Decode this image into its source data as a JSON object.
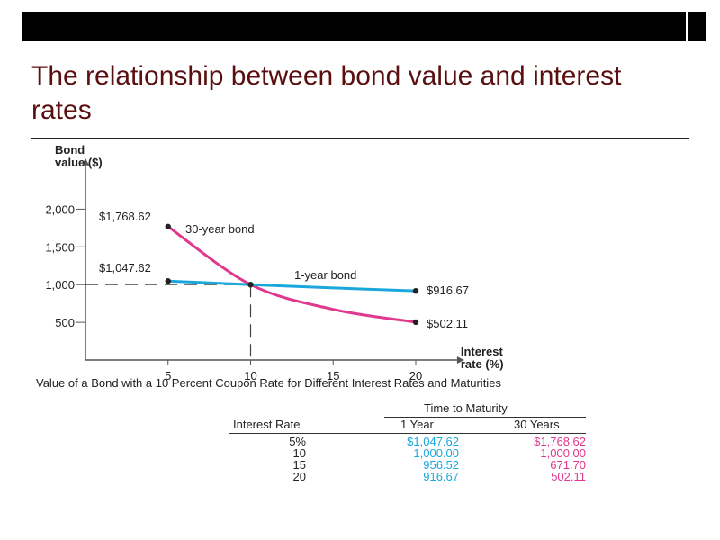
{
  "slide": {
    "title": "The relationship between bond value and interest rates"
  },
  "colors": {
    "title": "#5a1010",
    "thirty_year_bond": "#e0388e",
    "one_year_bond": "#1aa8dc",
    "axis": "#555555"
  },
  "chart_data": {
    "type": "line",
    "caption": "Value of a Bond with a 10 Percent Coupon Rate for Different Interest Rates and Maturities",
    "ylabel": "Bond\nvalue ($)",
    "xlabel": "Interest\nrate (%)",
    "x_ticks": [
      5,
      10,
      15,
      20
    ],
    "x_tick_labels": [
      "5",
      "10",
      "15",
      "20"
    ],
    "y_ticks": [
      500,
      1000,
      1500,
      2000
    ],
    "y_tick_labels": [
      "500",
      "1,000",
      "1,500",
      "2,000"
    ],
    "xlim": [
      0,
      22.5
    ],
    "ylim": [
      0,
      2700
    ],
    "grid": false,
    "series": [
      {
        "name": "30-year bond",
        "color": "#e0388e",
        "x": [
          5,
          10,
          15,
          20
        ],
        "values": [
          1768.62,
          1000.0,
          671.7,
          502.11
        ]
      },
      {
        "name": "1-year bond",
        "color": "#1aa8dc",
        "x": [
          5,
          10,
          15,
          20
        ],
        "values": [
          1047.62,
          1000.0,
          956.52,
          916.67
        ]
      }
    ],
    "annotations": [
      {
        "text": "$1,768.62",
        "x": 5,
        "y": 1768.62
      },
      {
        "text": "$1,047.62",
        "x": 5,
        "y": 1047.62
      },
      {
        "text": "$916.67",
        "x": 20,
        "y": 916.67
      },
      {
        "text": "$502.11",
        "x": 20,
        "y": 502.11
      }
    ],
    "reference_point": {
      "x": 10,
      "y": 1000
    }
  },
  "table": {
    "group_header": "Time to Maturity",
    "headers": [
      "Interest Rate",
      "1 Year",
      "30 Years"
    ],
    "rows": [
      [
        "5%",
        "$1,047.62",
        "$1,768.62"
      ],
      [
        "10",
        "1,000.00",
        "1,000.00"
      ],
      [
        "15",
        "956.52",
        "671.70"
      ],
      [
        "20",
        "916.67",
        "502.11"
      ]
    ]
  }
}
